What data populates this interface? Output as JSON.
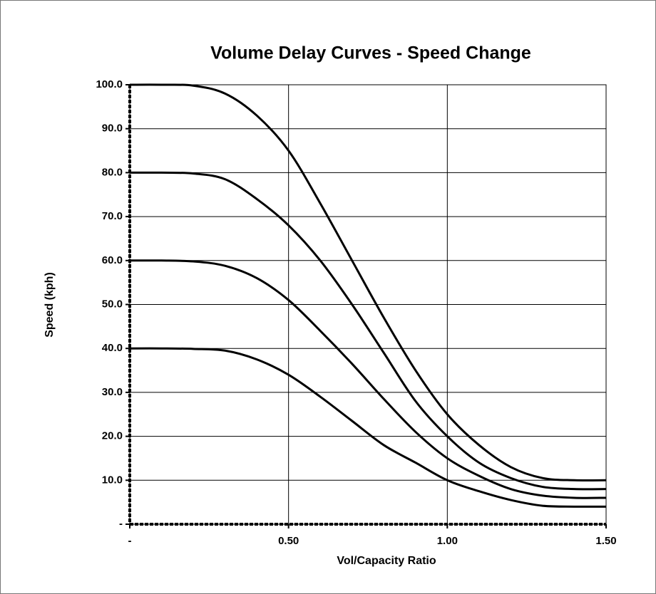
{
  "chart_data": {
    "type": "line",
    "title": "Volume Delay Curves - Speed Change",
    "x_label": "Vol/Capacity Ratio",
    "y_label": "Speed (kph)",
    "x": [
      0,
      0.1,
      0.2,
      0.3,
      0.4,
      0.5,
      0.6,
      0.7,
      0.8,
      0.9,
      1.0,
      1.1,
      1.2,
      1.3,
      1.4,
      1.5
    ],
    "series": [
      {
        "color": "#000000",
        "values": [
          100,
          100,
          99.8,
          98,
          93,
          85,
          73,
          60,
          47,
          35,
          25,
          18,
          13,
          10.5,
          10,
          10
        ]
      },
      {
        "color": "#000000",
        "values": [
          80,
          80,
          79.8,
          78.5,
          74,
          68,
          60,
          50,
          39,
          28,
          20,
          14,
          10.5,
          8.5,
          8,
          8
        ]
      },
      {
        "color": "#000000",
        "values": [
          60,
          60,
          59.8,
          58.8,
          56,
          51,
          44,
          36.5,
          28.5,
          21,
          15,
          11,
          8,
          6.5,
          6,
          6
        ]
      },
      {
        "color": "#000000",
        "values": [
          40,
          40,
          39.9,
          39.5,
          37.5,
          34,
          29,
          23.5,
          18,
          14,
          10,
          7.5,
          5.5,
          4.2,
          4,
          4
        ]
      }
    ],
    "xlim": [
      0,
      1.5
    ],
    "ylim": [
      0,
      100
    ],
    "xticks": [
      {
        "value": 0,
        "label": "-"
      },
      {
        "value": 0.5,
        "label": "0.50"
      },
      {
        "value": 1,
        "label": "1.00"
      },
      {
        "value": 1.5,
        "label": "1.50"
      }
    ],
    "yticks": [
      {
        "value": 0,
        "label": "-"
      },
      {
        "value": 10,
        "label": "10.0"
      },
      {
        "value": 20,
        "label": "20.0"
      },
      {
        "value": 30,
        "label": "30.0"
      },
      {
        "value": 40,
        "label": "40.0"
      },
      {
        "value": 50,
        "label": "50.0"
      },
      {
        "value": 60,
        "label": "60.0"
      },
      {
        "value": 70,
        "label": "70.0"
      },
      {
        "value": 80,
        "label": "80.0"
      },
      {
        "value": 90,
        "label": "90.0"
      },
      {
        "value": 100,
        "label": "100.0"
      }
    ],
    "grid": true
  }
}
